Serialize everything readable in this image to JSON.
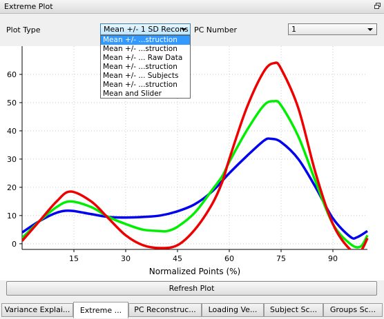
{
  "window": {
    "title": "Extreme Plot"
  },
  "controls": {
    "plot_type_label": "Plot Type",
    "plot_type_value": "Mean +/- 1 SD Recons",
    "pc_number_label": "PC Number",
    "pc_number_value": "1"
  },
  "dropdown": {
    "options": [
      "Mean +/- ...struction",
      "Mean +/- ...struction",
      "Mean +/- ... Raw Data",
      "Mean +/- ...struction",
      "Mean +/- ... Subjects",
      "Mean +/- ...struction",
      "Mean and Slider"
    ],
    "selected_index": 0
  },
  "chart_data": {
    "type": "line",
    "title": "",
    "xlabel": "Normalized Points (%)",
    "ylabel": "",
    "xlim": [
      0,
      100
    ],
    "ylim": [
      -2,
      70
    ],
    "xticks": [
      15,
      30,
      45,
      60,
      75,
      90
    ],
    "yticks": [
      0,
      10,
      20,
      30,
      40,
      50,
      60
    ],
    "grid": true,
    "series": [
      {
        "color": "#0000ee",
        "x": [
          0,
          5,
          10,
          14,
          20,
          25,
          30,
          35,
          40,
          45,
          50,
          55,
          60,
          65,
          70,
          72,
          75,
          80,
          85,
          90,
          95,
          97,
          100
        ],
        "y": [
          4,
          8,
          11,
          11.7,
          10.5,
          9.5,
          9.3,
          9.5,
          10,
          11.5,
          14,
          18.5,
          25,
          31,
          36.5,
          37.2,
          36,
          30,
          20,
          9,
          2.5,
          2.3,
          4.5
        ]
      },
      {
        "color": "#00ee00",
        "x": [
          0,
          5,
          10,
          14,
          20,
          25,
          30,
          35,
          40,
          42,
          45,
          50,
          55,
          58,
          60,
          65,
          70,
          73,
          75,
          80,
          85,
          90,
          95,
          98,
          100
        ],
        "y": [
          2,
          8,
          13,
          15,
          13,
          9.5,
          7,
          5,
          4.5,
          4.5,
          6,
          11,
          19,
          24,
          29,
          40,
          49,
          50.5,
          49,
          38,
          22,
          7,
          0,
          -1,
          3
        ]
      },
      {
        "color": "#ee0000",
        "x": [
          0,
          5,
          10,
          14,
          20,
          25,
          30,
          35,
          40,
          45,
          50,
          55,
          58,
          60,
          65,
          70,
          73,
          75,
          80,
          85,
          90,
          95,
          98,
          100
        ],
        "y": [
          1,
          8,
          15,
          18.5,
          15,
          9,
          3,
          -0.5,
          -1.5,
          -0.5,
          5,
          14,
          22,
          30,
          48,
          61,
          64,
          62,
          48,
          25,
          7,
          -2,
          -2.5,
          2
        ]
      }
    ]
  },
  "actions": {
    "refresh_label": "Refresh Plot"
  },
  "tabs": [
    {
      "label": "Variance Explai..."
    },
    {
      "label": "Extreme ..."
    },
    {
      "label": "PC Reconstruc..."
    },
    {
      "label": "Loading Ve..."
    },
    {
      "label": "Subject Sc..."
    },
    {
      "label": "Groups Sc..."
    }
  ],
  "colors": {
    "selection": "#3399ff"
  }
}
